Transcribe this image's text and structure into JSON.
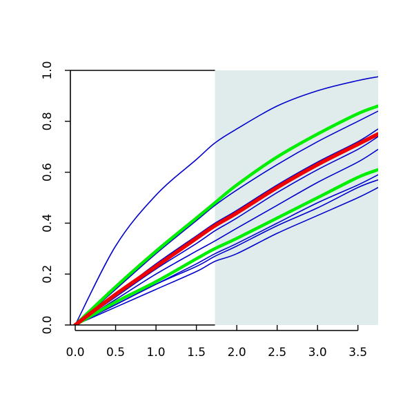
{
  "chart_data": {
    "type": "line",
    "title": "",
    "xlabel": "",
    "ylabel": "",
    "xlim": [
      -0.06,
      3.75
    ],
    "ylim": [
      0,
      1.0
    ],
    "xticks": [
      0.0,
      0.5,
      1.0,
      1.5,
      2.0,
      2.5,
      3.0,
      3.5
    ],
    "xtick_labels": [
      "0.0",
      "0.5",
      "1.0",
      "1.5",
      "2.0",
      "2.5",
      "3.0",
      "3.5"
    ],
    "yticks": [
      0.0,
      0.2,
      0.4,
      0.6,
      0.8,
      1.0
    ],
    "ytick_labels": [
      "0.0",
      "0.2",
      "0.4",
      "0.6",
      "0.8",
      "1.0"
    ],
    "grid": false,
    "legend": "none",
    "shaded_region": {
      "x_start": 1.73,
      "x_end": 3.75,
      "color": "#e0ecec"
    },
    "colors": {
      "blue": "#0000cc",
      "green": "#00ee00",
      "red": "#ee0000"
    },
    "series": [
      {
        "color": "#0000cc",
        "width": 1.6,
        "x": [
          0,
          0.5,
          1.0,
          1.5,
          1.73,
          2.0,
          2.5,
          3.0,
          3.5,
          3.75
        ],
        "y": [
          0,
          0.31,
          0.51,
          0.65,
          0.715,
          0.77,
          0.86,
          0.92,
          0.96,
          0.975
        ]
      },
      {
        "color": "#00ee00",
        "width": 4.5,
        "x": [
          0,
          0.5,
          1.0,
          1.5,
          1.73,
          2.0,
          2.5,
          3.0,
          3.5,
          3.75
        ],
        "y": [
          0,
          0.15,
          0.29,
          0.42,
          0.48,
          0.55,
          0.66,
          0.75,
          0.83,
          0.86
        ]
      },
      {
        "color": "#0000cc",
        "width": 1.6,
        "x": [
          0,
          0.5,
          1.0,
          1.5,
          1.73,
          2.0,
          2.5,
          3.0,
          3.5,
          3.75
        ],
        "y": [
          0,
          0.14,
          0.28,
          0.41,
          0.47,
          0.53,
          0.63,
          0.72,
          0.8,
          0.84
        ]
      },
      {
        "color": "#0000cc",
        "width": 1.6,
        "x": [
          0,
          0.5,
          1.0,
          1.5,
          1.73,
          2.0,
          2.5,
          3.0,
          3.5,
          3.75
        ],
        "y": [
          0,
          0.12,
          0.24,
          0.35,
          0.4,
          0.45,
          0.55,
          0.64,
          0.72,
          0.77
        ]
      },
      {
        "color": "#ee0000",
        "width": 5.5,
        "x": [
          0,
          0.5,
          1.0,
          1.5,
          1.73,
          2.0,
          2.5,
          3.0,
          3.5,
          3.75
        ],
        "y": [
          0,
          0.12,
          0.23,
          0.34,
          0.39,
          0.44,
          0.54,
          0.63,
          0.71,
          0.75
        ]
      },
      {
        "color": "#0000cc",
        "width": 1.6,
        "x": [
          0,
          0.5,
          1.0,
          1.5,
          1.73,
          2.0,
          2.5,
          3.0,
          3.5,
          3.75
        ],
        "y": [
          0,
          0.11,
          0.22,
          0.32,
          0.37,
          0.42,
          0.52,
          0.61,
          0.69,
          0.74
        ]
      },
      {
        "color": "#0000cc",
        "width": 1.6,
        "x": [
          0,
          0.5,
          1.0,
          1.5,
          1.73,
          2.0,
          2.5,
          3.0,
          3.5,
          3.75
        ],
        "y": [
          0,
          0.1,
          0.2,
          0.29,
          0.33,
          0.38,
          0.47,
          0.56,
          0.64,
          0.69
        ]
      },
      {
        "color": "#00ee00",
        "width": 4.5,
        "x": [
          0,
          0.5,
          1.0,
          1.5,
          1.73,
          2.0,
          2.5,
          3.0,
          3.5,
          3.75
        ],
        "y": [
          0,
          0.09,
          0.17,
          0.26,
          0.3,
          0.34,
          0.42,
          0.5,
          0.58,
          0.61
        ]
      },
      {
        "color": "#0000cc",
        "width": 1.6,
        "x": [
          0,
          0.5,
          1.0,
          1.5,
          1.73,
          2.0,
          2.5,
          3.0,
          3.5,
          3.75
        ],
        "y": [
          0,
          0.08,
          0.16,
          0.24,
          0.28,
          0.32,
          0.4,
          0.48,
          0.55,
          0.59
        ]
      },
      {
        "color": "#0000cc",
        "width": 1.6,
        "x": [
          0,
          0.5,
          1.0,
          1.5,
          1.73,
          2.0,
          2.5,
          3.0,
          3.5,
          3.75
        ],
        "y": [
          0,
          0.08,
          0.16,
          0.23,
          0.27,
          0.31,
          0.39,
          0.46,
          0.54,
          0.57
        ]
      },
      {
        "color": "#0000cc",
        "width": 1.6,
        "x": [
          0,
          0.5,
          1.0,
          1.5,
          1.73,
          2.0,
          2.5,
          3.0,
          3.5,
          3.75
        ],
        "y": [
          0,
          0.07,
          0.14,
          0.21,
          0.25,
          0.28,
          0.36,
          0.43,
          0.5,
          0.54
        ]
      }
    ]
  }
}
